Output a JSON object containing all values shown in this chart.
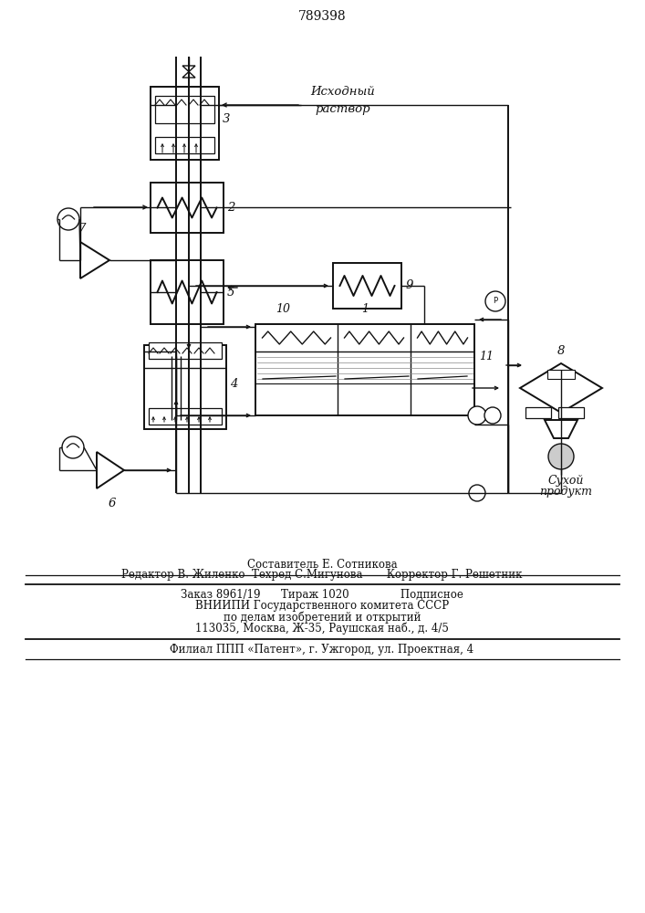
{
  "title": "789398",
  "bg": "#ffffff",
  "lc": "#111111",
  "footer1": "Составитель Е. Сотникова",
  "footer2": "Редактор В. Жиленко  Техред С.Мигунова       Корректор Г. Решетник",
  "footer3": "Заказ 8961/19      Тираж 1020               Подписное",
  "footer4": "ВНИИПИ Государственного комитета СССР",
  "footer5": "по делам изобретений и открытий",
  "footer6": "113035, Москва, Ж-35, Раушская наб., д. 4/5",
  "footer7": "Филиал ППП «Патент», г. Ужгород, ул. Проектная, 4",
  "label1": "1",
  "label2": "2",
  "label3": "3",
  "label4": "4",
  "label5": "5",
  "label6": "6",
  "label7": "7",
  "label8": "8",
  "label9": "9",
  "label10": "10",
  "label11": "11",
  "src_label1": "Исходный",
  "src_label2": "раствор",
  "dry_label1": "Сухой",
  "dry_label2": "продукт"
}
